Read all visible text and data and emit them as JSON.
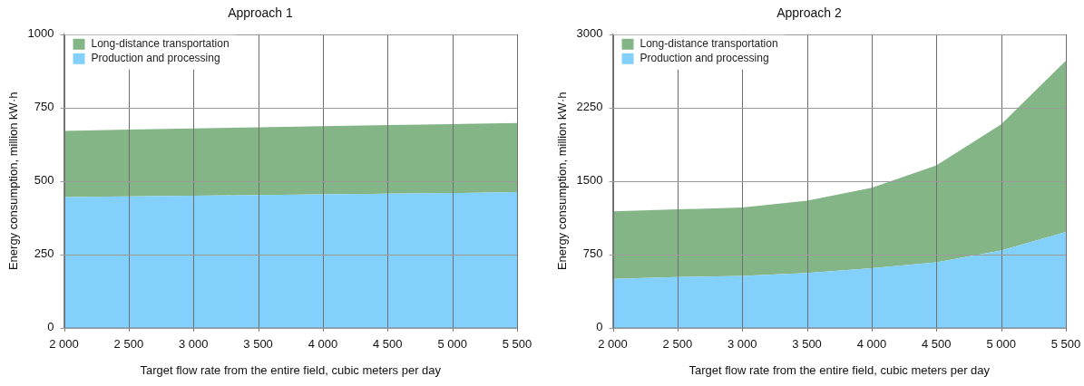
{
  "chart_data": [
    {
      "type": "area",
      "title": "Approach 1",
      "xlabel": "Target flow rate from the entire field, cubic meters per day",
      "ylabel": "Energy consumption, million kW·h",
      "stacked": true,
      "x": [
        2000,
        2500,
        3000,
        3500,
        4000,
        4500,
        5000,
        5500
      ],
      "series": [
        {
          "name": "Production and processing",
          "color": "#84d0fc",
          "values": [
            445,
            448,
            450,
            452,
            455,
            457,
            459,
            462
          ]
        },
        {
          "name": "Long-distance transportation",
          "color": "#84b587",
          "values": [
            226,
            227,
            229,
            231,
            232,
            234,
            235,
            236
          ]
        }
      ],
      "xlim": [
        2000,
        5500
      ],
      "xticks": [
        {
          "value": 2000,
          "label": "2 000"
        },
        {
          "value": 2500,
          "label": "2 500"
        },
        {
          "value": 3000,
          "label": "3 000"
        },
        {
          "value": 3500,
          "label": "3 500"
        },
        {
          "value": 4000,
          "label": "4 000"
        },
        {
          "value": 4500,
          "label": "4 500"
        },
        {
          "value": 5000,
          "label": "5 000"
        },
        {
          "value": 5500,
          "label": "5 500"
        }
      ],
      "ylim": [
        0,
        1000
      ],
      "yticks": [
        0,
        250,
        500,
        750,
        1000
      ],
      "grid": true,
      "legend": "top left"
    },
    {
      "type": "area",
      "title": "Approach 2",
      "xlabel": "Target flow rate from the entire field, cubic meters per day",
      "ylabel": "Energy consumption, million kW·h",
      "stacked": true,
      "x": [
        2000,
        2500,
        3000,
        3500,
        4000,
        4500,
        5000,
        5500
      ],
      "series": [
        {
          "name": "Production and processing",
          "color": "#84d0fc",
          "values": [
            500,
            520,
            530,
            560,
            610,
            670,
            790,
            980
          ]
        },
        {
          "name": "Long-distance transportation",
          "color": "#84b587",
          "values": [
            690,
            690,
            700,
            740,
            820,
            990,
            1290,
            1750
          ]
        }
      ],
      "xlim": [
        2000,
        5500
      ],
      "xticks": [
        {
          "value": 2000,
          "label": "2 000"
        },
        {
          "value": 2500,
          "label": "2 500"
        },
        {
          "value": 3000,
          "label": "3 000"
        },
        {
          "value": 3500,
          "label": "3 500"
        },
        {
          "value": 4000,
          "label": "4 000"
        },
        {
          "value": 4500,
          "label": "4 500"
        },
        {
          "value": 5000,
          "label": "5 000"
        },
        {
          "value": 5500,
          "label": "5 500"
        }
      ],
      "ylim": [
        0,
        3000
      ],
      "yticks": [
        0,
        750,
        1500,
        2250,
        3000
      ],
      "grid": true,
      "legend": "top left"
    }
  ]
}
